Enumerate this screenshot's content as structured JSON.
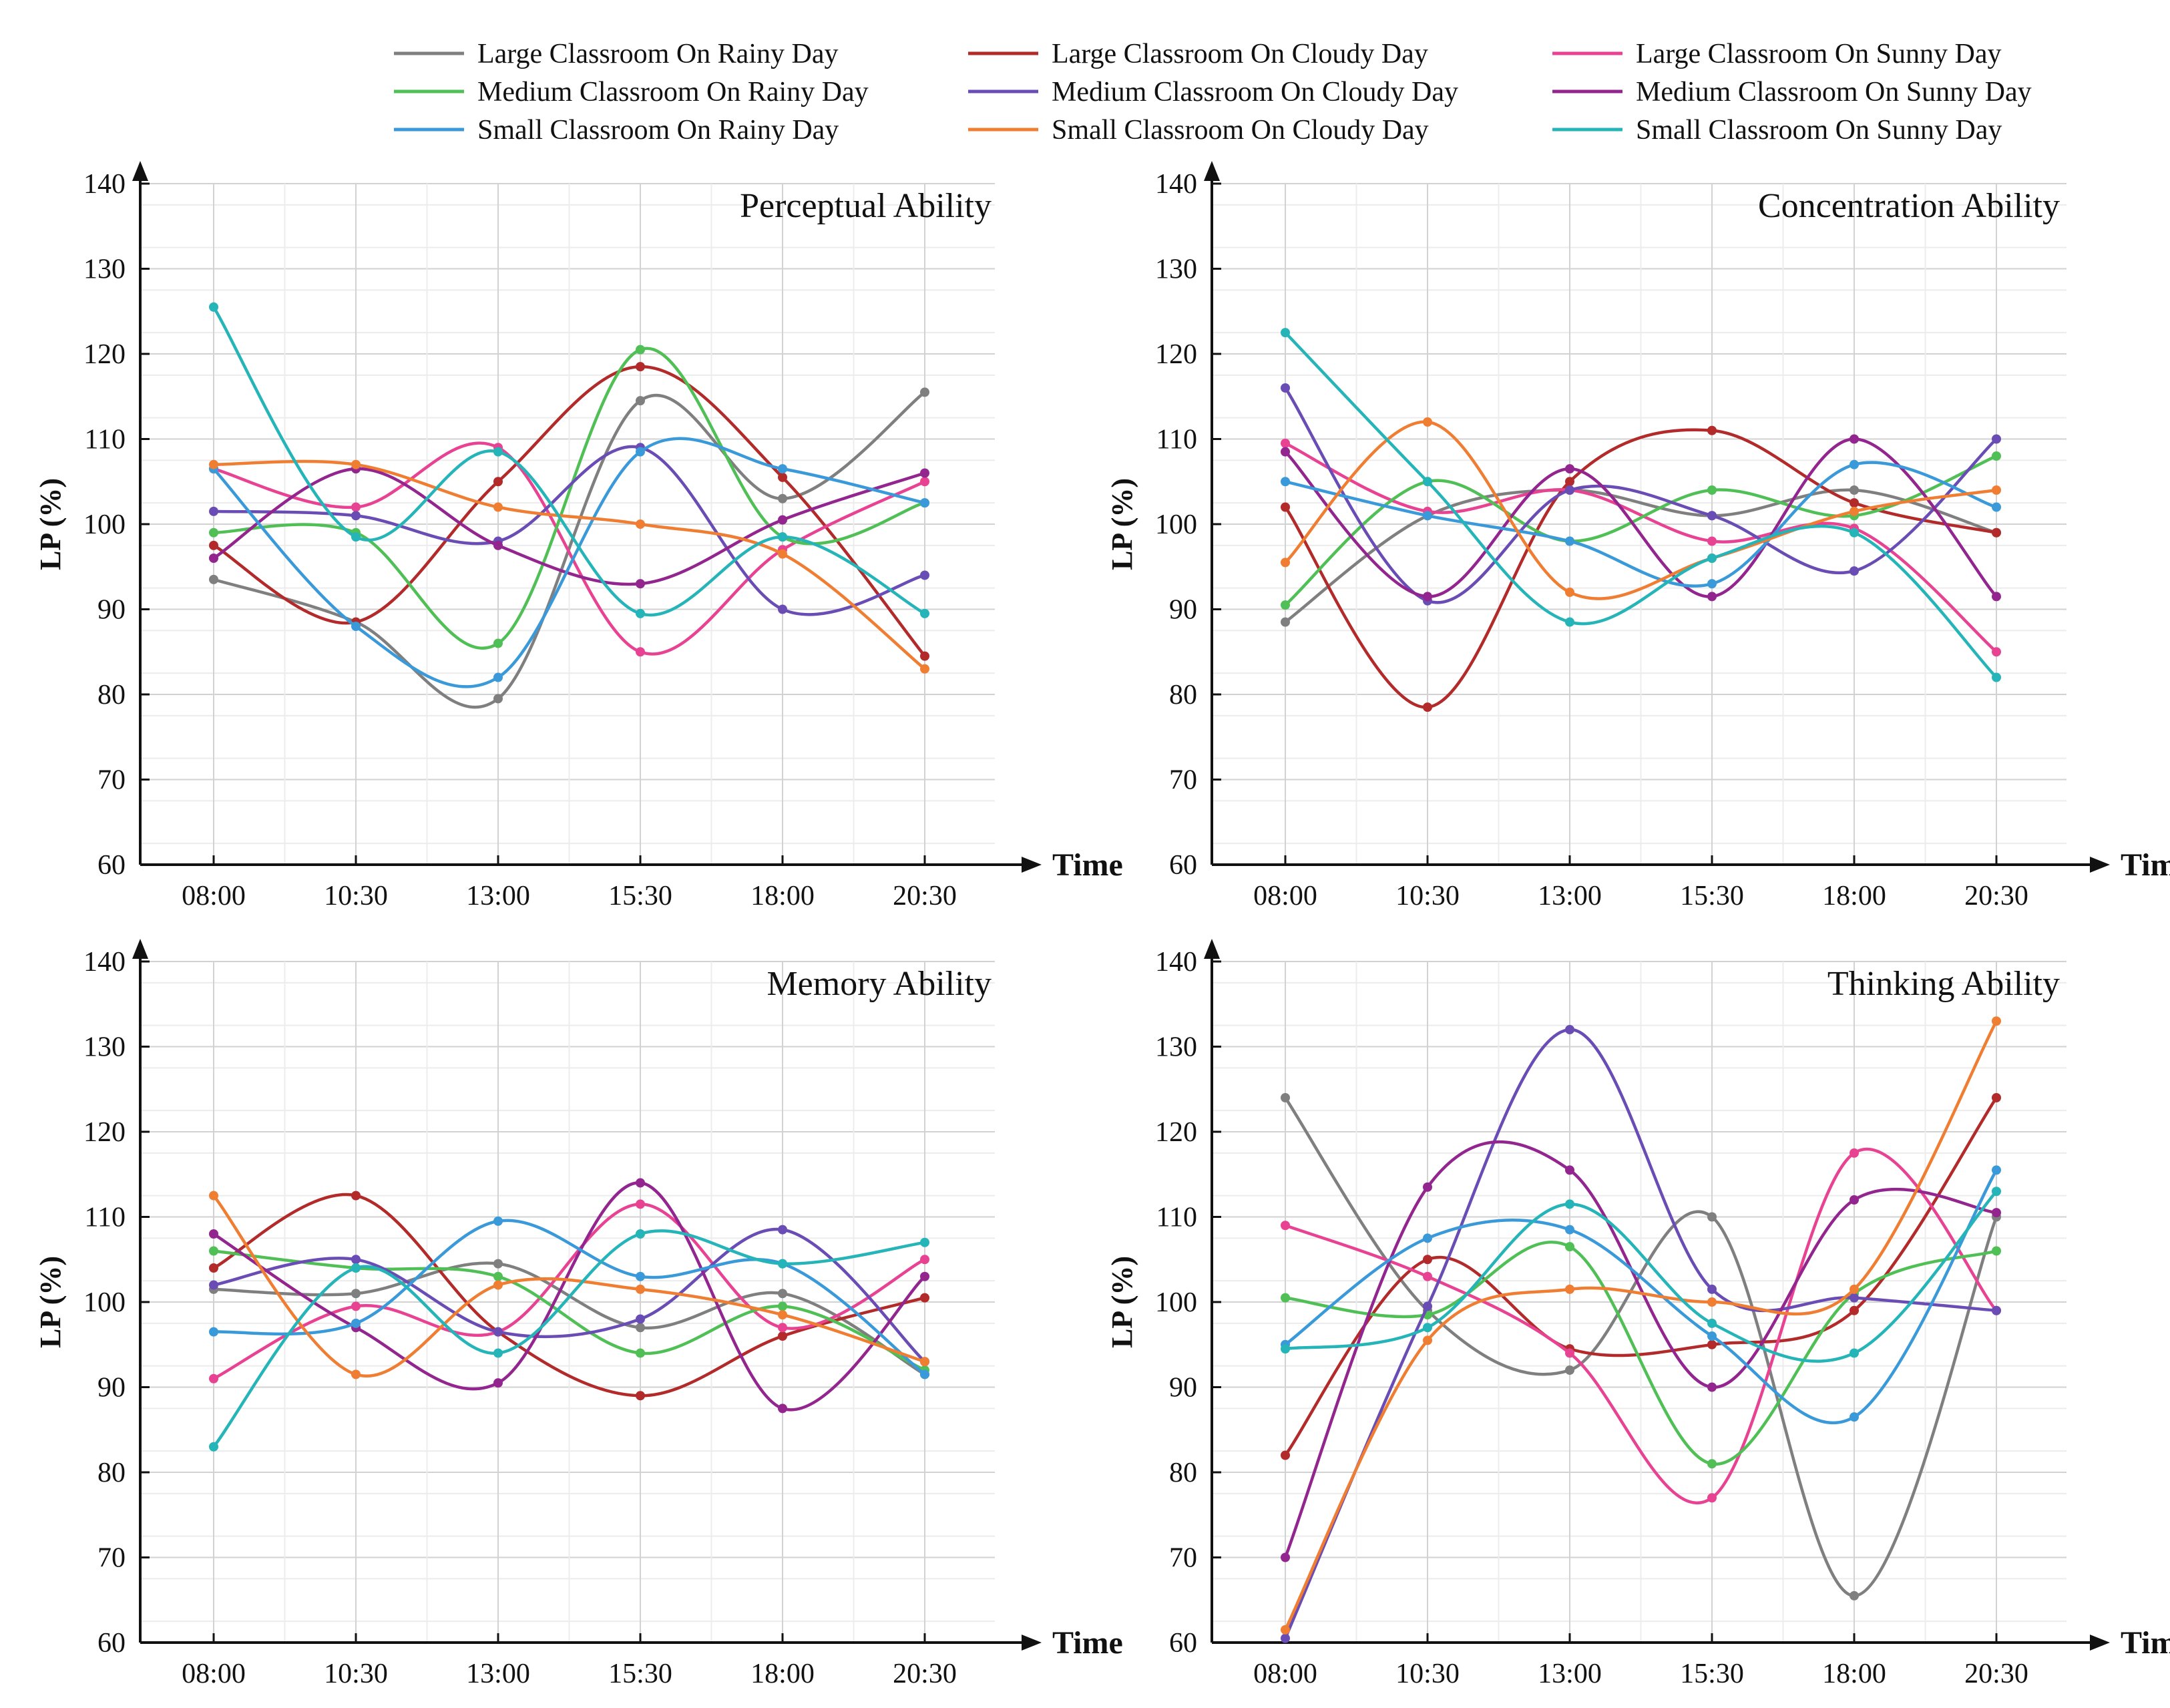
{
  "chart_data": {
    "type": "line",
    "series_colors": {
      "Large Classroom On Rainy Day": "#7f7f7f",
      "Large Classroom On Cloudy Day": "#b22a2a",
      "Large Classroom On Sunny Day": "#e84393",
      "Medium Classroom On Rainy Day": "#4fbf56",
      "Medium Classroom On Cloudy Day": "#6a4cb5",
      "Medium Classroom On Sunny Day": "#93258f",
      "Small Classroom On Rainy Day": "#3a9ad9",
      "Small Classroom On Cloudy Day": "#ef7d32",
      "Small Classroom On Sunny Day": "#25b4b8"
    },
    "legend": [
      "Large Classroom On Rainy Day",
      "Large Classroom On Cloudy Day",
      "Large Classroom On Sunny Day",
      "Medium Classroom On Rainy Day",
      "Medium Classroom On Cloudy Day",
      "Medium Classroom On Sunny Day",
      "Small Classroom On Rainy Day",
      "Small Classroom On Cloudy Day",
      "Small Classroom On Sunny Day"
    ],
    "panels": [
      {
        "title": "Perceptual Ability",
        "xlabel": "Time",
        "ylabel": "LP (%)",
        "categories": [
          "08:00",
          "10:30",
          "13:00",
          "15:30",
          "18:00",
          "20:30"
        ],
        "ylim": [
          60,
          140
        ],
        "yticks": [
          60,
          70,
          80,
          90,
          100,
          110,
          120,
          130,
          140
        ],
        "series": [
          {
            "name": "Large Classroom On Rainy Day",
            "values": [
              93.5,
              88.5,
              79.5,
              114.5,
              103,
              115.5
            ]
          },
          {
            "name": "Large Classroom On Cloudy Day",
            "values": [
              97.5,
              88.5,
              105,
              118.5,
              105.5,
              84.5
            ]
          },
          {
            "name": "Large Classroom On Sunny Day",
            "values": [
              106.5,
              102,
              109,
              85,
              97,
              105
            ]
          },
          {
            "name": "Medium Classroom On Rainy Day",
            "values": [
              99,
              99,
              86,
              120.5,
              98.5,
              102.5
            ]
          },
          {
            "name": "Medium Classroom On Cloudy Day",
            "values": [
              101.5,
              101,
              98,
              109,
              90,
              94
            ]
          },
          {
            "name": "Medium Classroom On Sunny Day",
            "values": [
              96,
              106.5,
              97.5,
              93,
              100.5,
              106
            ]
          },
          {
            "name": "Small Classroom On Rainy Day",
            "values": [
              106.5,
              88,
              82,
              108.5,
              106.5,
              102.5
            ]
          },
          {
            "name": "Small Classroom On Cloudy Day",
            "values": [
              107,
              107,
              102,
              100,
              96.5,
              83
            ]
          },
          {
            "name": "Small Classroom On Sunny Day",
            "values": [
              125.5,
              98.5,
              108.5,
              89.5,
              98.5,
              89.5
            ]
          }
        ]
      },
      {
        "title": "Concentration Ability",
        "xlabel": "Time",
        "ylabel": "LP (%)",
        "categories": [
          "08:00",
          "10:30",
          "13:00",
          "15:30",
          "18:00",
          "20:30"
        ],
        "ylim": [
          60,
          140
        ],
        "yticks": [
          60,
          70,
          80,
          90,
          100,
          110,
          120,
          130,
          140
        ],
        "series": [
          {
            "name": "Large Classroom On Rainy Day",
            "values": [
              88.5,
              101,
              104,
              101,
              104,
              99
            ]
          },
          {
            "name": "Large Classroom On Cloudy Day",
            "values": [
              102,
              78.5,
              105,
              111,
              102.5,
              99
            ]
          },
          {
            "name": "Large Classroom On Sunny Day",
            "values": [
              109.5,
              101.5,
              104,
              98,
              99.5,
              85
            ]
          },
          {
            "name": "Medium Classroom On Rainy Day",
            "values": [
              90.5,
              105,
              98,
              104,
              101,
              108
            ]
          },
          {
            "name": "Medium Classroom On Cloudy Day",
            "values": [
              116,
              91,
              104,
              101,
              94.5,
              110
            ]
          },
          {
            "name": "Medium Classroom On Sunny Day",
            "values": [
              108.5,
              91.5,
              106.5,
              91.5,
              110,
              91.5
            ]
          },
          {
            "name": "Small Classroom On Rainy Day",
            "values": [
              105,
              101,
              98,
              93,
              107,
              102
            ]
          },
          {
            "name": "Small Classroom On Cloudy Day",
            "values": [
              95.5,
              112,
              92,
              96,
              101.5,
              104
            ]
          },
          {
            "name": "Small Classroom On Sunny Day",
            "values": [
              122.5,
              105,
              88.5,
              96,
              99,
              82
            ]
          }
        ]
      },
      {
        "title": "Memory Ability",
        "xlabel": "Time",
        "ylabel": "LP (%)",
        "categories": [
          "08:00",
          "10:30",
          "13:00",
          "15:30",
          "18:00",
          "20:30"
        ],
        "ylim": [
          60,
          140
        ],
        "yticks": [
          60,
          70,
          80,
          90,
          100,
          110,
          120,
          130,
          140
        ],
        "series": [
          {
            "name": "Large Classroom On Rainy Day",
            "values": [
              101.5,
              101,
              104.5,
              97,
              101,
              91.5
            ]
          },
          {
            "name": "Large Classroom On Cloudy Day",
            "values": [
              104,
              112.5,
              96.5,
              89,
              96,
              100.5
            ]
          },
          {
            "name": "Large Classroom On Sunny Day",
            "values": [
              91,
              99.5,
              96.5,
              111.5,
              97,
              105
            ]
          },
          {
            "name": "Medium Classroom On Rainy Day",
            "values": [
              106,
              104,
              103,
              94,
              99.5,
              92
            ]
          },
          {
            "name": "Medium Classroom On Cloudy Day",
            "values": [
              102,
              105,
              96.5,
              98,
              108.5,
              93
            ]
          },
          {
            "name": "Medium Classroom On Sunny Day",
            "values": [
              108,
              97,
              90.5,
              114,
              87.5,
              103
            ]
          },
          {
            "name": "Small Classroom On Rainy Day",
            "values": [
              96.5,
              97.5,
              109.5,
              103,
              104.5,
              91.5
            ]
          },
          {
            "name": "Small Classroom On Cloudy Day",
            "values": [
              112.5,
              91.5,
              102,
              101.5,
              98.5,
              93
            ]
          },
          {
            "name": "Small Classroom On Sunny Day",
            "values": [
              83,
              104,
              94,
              108,
              104.5,
              107
            ]
          }
        ]
      },
      {
        "title": "Thinking Ability",
        "xlabel": "Time",
        "ylabel": "LP (%)",
        "categories": [
          "08:00",
          "10:30",
          "13:00",
          "15:30",
          "18:00",
          "20:30"
        ],
        "ylim": [
          60,
          140
        ],
        "yticks": [
          60,
          70,
          80,
          90,
          100,
          110,
          120,
          130,
          140
        ],
        "series": [
          {
            "name": "Large Classroom On Rainy Day",
            "values": [
              124,
              99,
              92,
              110,
              65.5,
              110
            ]
          },
          {
            "name": "Large Classroom On Cloudy Day",
            "values": [
              82,
              105,
              94.5,
              95,
              99,
              124
            ]
          },
          {
            "name": "Large Classroom On Sunny Day",
            "values": [
              109,
              103,
              94,
              77,
              117.5,
              99
            ]
          },
          {
            "name": "Medium Classroom On Rainy Day",
            "values": [
              100.5,
              98.5,
              106.5,
              81,
              101,
              106
            ]
          },
          {
            "name": "Medium Classroom On Cloudy Day",
            "values": [
              60.5,
              99.5,
              132,
              101.5,
              100.5,
              99
            ]
          },
          {
            "name": "Medium Classroom On Sunny Day",
            "values": [
              70,
              113.5,
              115.5,
              90,
              112,
              110.5
            ]
          },
          {
            "name": "Small Classroom On Rainy Day",
            "values": [
              95,
              107.5,
              108.5,
              96,
              86.5,
              115.5
            ]
          },
          {
            "name": "Small Classroom On Cloudy Day",
            "values": [
              61.5,
              95.5,
              101.5,
              100,
              101.5,
              133
            ]
          },
          {
            "name": "Small Classroom On Sunny Day",
            "values": [
              94.5,
              97,
              111.5,
              97.5,
              94,
              113
            ]
          }
        ]
      }
    ]
  }
}
